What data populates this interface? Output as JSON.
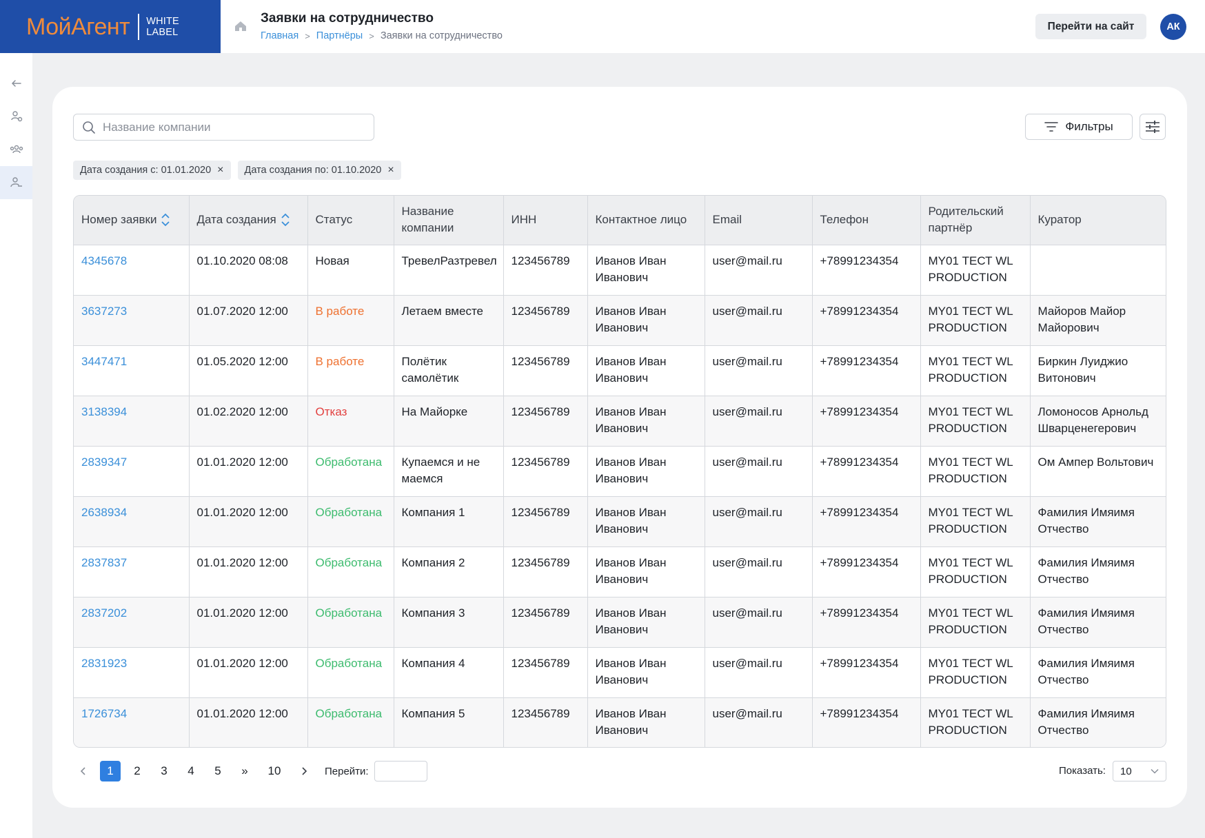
{
  "header": {
    "logo_main": "МойАгент",
    "logo_sub1": "WHITE",
    "logo_sub2": "LABEL",
    "title": "Заявки на сотрудничество",
    "breadcrumb": [
      {
        "label": "Главная",
        "link": true
      },
      {
        "label": "Партнёры",
        "link": true
      },
      {
        "label": "Заявки на сотрудничество",
        "link": false
      }
    ],
    "goto_site_label": "Перейти на сайт",
    "avatar_initials": "АК"
  },
  "sidebar": {
    "icons": [
      "arrow-left-icon",
      "users-link-icon",
      "group-icon",
      "user-partner-icon"
    ],
    "active_index": 3
  },
  "toolbar": {
    "search_placeholder": "Название компании",
    "filters_label": "Фильтры"
  },
  "chips": [
    "Дата создания с: 01.01.2020",
    "Дата создания по: 01.10.2020"
  ],
  "table": {
    "columns": [
      "Номер заявки",
      "Дата создания",
      "Статус",
      "Название компании",
      "ИНН",
      "Контактное лицо",
      "Email",
      "Телефон",
      "Родительский партнёр",
      "Куратор"
    ],
    "rows": [
      {
        "id": "4345678",
        "date": "01.10.2020 08:08",
        "status": "Новая",
        "status_kind": "new",
        "company": "ТревелРазтревел",
        "inn": "123456789",
        "contact": "Иванов Иван Иванович",
        "email": "user@mail.ru",
        "phone": "+78991234354",
        "parent_code": "MY01",
        "parent_name": "ТЕСТ WL PRODUCTION",
        "curator": ""
      },
      {
        "id": "3637273",
        "date": "01.07.2020 12:00",
        "status": "В работе",
        "status_kind": "work",
        "company": "Летаем вместе",
        "inn": "123456789",
        "contact": "Иванов Иван Иванович",
        "email": "user@mail.ru",
        "phone": "+78991234354",
        "parent_code": "MY01",
        "parent_name": "ТЕСТ WL PRODUCTION",
        "curator": "Майоров Майор Майорович"
      },
      {
        "id": "3447471",
        "date": "01.05.2020 12:00",
        "status": "В работе",
        "status_kind": "work",
        "company": "Полётик самолётик",
        "inn": "123456789",
        "contact": "Иванов Иван Иванович",
        "email": "user@mail.ru",
        "phone": "+78991234354",
        "parent_code": "MY01",
        "parent_name": "ТЕСТ WL PRODUCTION",
        "curator": "Биркин Луиджио Витонович"
      },
      {
        "id": "3138394",
        "date": "01.02.2020 12:00",
        "status": "Отказ",
        "status_kind": "reject",
        "company": "На Майорке",
        "inn": "123456789",
        "contact": "Иванов Иван Иванович",
        "email": "user@mail.ru",
        "phone": "+78991234354",
        "parent_code": "MY01",
        "parent_name": "ТЕСТ WL PRODUCTION",
        "curator": "Ломоносов Арнольд Шварценегерович"
      },
      {
        "id": "2839347",
        "date": "01.01.2020 12:00",
        "status": "Обработана",
        "status_kind": "done",
        "company": "Купаемся и не маемся",
        "inn": "123456789",
        "contact": "Иванов Иван Иванович",
        "email": "user@mail.ru",
        "phone": "+78991234354",
        "parent_code": "MY01",
        "parent_name": "ТЕСТ WL PRODUCTION",
        "curator": "Ом Ампер Вольтович"
      },
      {
        "id": "2638934",
        "date": "01.01.2020 12:00",
        "status": "Обработана",
        "status_kind": "done",
        "company": "Компания 1",
        "inn": "123456789",
        "contact": "Иванов Иван Иванович",
        "email": "user@mail.ru",
        "phone": "+78991234354",
        "parent_code": "MY01",
        "parent_name": "ТЕСТ WL PRODUCTION",
        "curator": "Фамилия Имяимя Отчество"
      },
      {
        "id": "2837837",
        "date": "01.01.2020 12:00",
        "status": "Обработана",
        "status_kind": "done",
        "company": "Компания 2",
        "inn": "123456789",
        "contact": "Иванов Иван Иванович",
        "email": "user@mail.ru",
        "phone": "+78991234354",
        "parent_code": "MY01",
        "parent_name": "ТЕСТ WL PRODUCTION",
        "curator": "Фамилия Имяимя Отчество"
      },
      {
        "id": "2837202",
        "date": "01.01.2020 12:00",
        "status": "Обработана",
        "status_kind": "done",
        "company": "Компания 3",
        "inn": "123456789",
        "contact": "Иванов Иван Иванович",
        "email": "user@mail.ru",
        "phone": "+78991234354",
        "parent_code": "MY01",
        "parent_name": "ТЕСТ WL PRODUCTION",
        "curator": "Фамилия Имяимя Отчество"
      },
      {
        "id": "2831923",
        "date": "01.01.2020 12:00",
        "status": "Обработана",
        "status_kind": "done",
        "company": "Компания 4",
        "inn": "123456789",
        "contact": "Иванов Иван Иванович",
        "email": "user@mail.ru",
        "phone": "+78991234354",
        "parent_code": "MY01",
        "parent_name": "ТЕСТ WL PRODUCTION",
        "curator": "Фамилия Имяимя Отчество"
      },
      {
        "id": "1726734",
        "date": "01.01.2020 12:00",
        "status": "Обработана",
        "status_kind": "done",
        "company": "Компания 5",
        "inn": "123456789",
        "contact": "Иванов Иван Иванович",
        "email": "user@mail.ru",
        "phone": "+78991234354",
        "parent_code": "MY01",
        "parent_name": "ТЕСТ WL PRODUCTION",
        "curator": "Фамилия Имяимя Отчество"
      }
    ]
  },
  "pagination": {
    "pages": [
      "1",
      "2",
      "3",
      "4",
      "5"
    ],
    "current": "1",
    "jump_label": "»",
    "last_page": "10",
    "goto_label": "Перейти:",
    "show_label": "Показать:",
    "page_size": "10"
  },
  "colors": {
    "brand_blue": "#1f4ea8",
    "logo_orange": "#ef8b3c",
    "link_blue": "#3a8fd9",
    "status_work": "#ee7130",
    "status_reject": "#e2403f",
    "status_done": "#3dbb6e",
    "active_page": "#2f7fe0"
  }
}
